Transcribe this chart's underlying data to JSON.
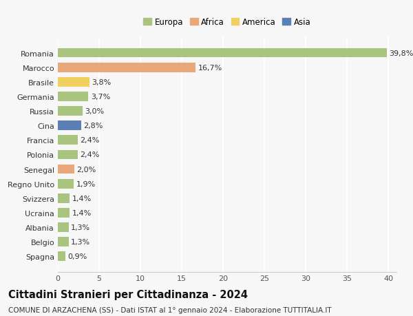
{
  "categories": [
    "Spagna",
    "Belgio",
    "Albania",
    "Ucraina",
    "Svizzera",
    "Regno Unito",
    "Senegal",
    "Polonia",
    "Francia",
    "Cina",
    "Russia",
    "Germania",
    "Brasile",
    "Marocco",
    "Romania"
  ],
  "values": [
    0.9,
    1.3,
    1.3,
    1.4,
    1.4,
    1.9,
    2.0,
    2.4,
    2.4,
    2.8,
    3.0,
    3.7,
    3.8,
    16.7,
    39.8
  ],
  "continents": [
    "Europa",
    "Europa",
    "Europa",
    "Europa",
    "Europa",
    "Europa",
    "Africa",
    "Europa",
    "Europa",
    "Asia",
    "Europa",
    "Europa",
    "America",
    "Africa",
    "Europa"
  ],
  "colors": {
    "Europa": "#a8c47e",
    "Africa": "#e8a878",
    "America": "#f0d060",
    "Asia": "#5b7fb5"
  },
  "xlim": [
    0,
    41
  ],
  "xticks": [
    0,
    5,
    10,
    15,
    20,
    25,
    30,
    35,
    40
  ],
  "title": "Cittadini Stranieri per Cittadinanza - 2024",
  "subtitle": "COMUNE DI ARZACHENA (SS) - Dati ISTAT al 1° gennaio 2024 - Elaborazione TUTTITALIA.IT",
  "bg_color": "#f7f7f7",
  "grid_color": "#ffffff",
  "bar_height": 0.65,
  "label_fontsize": 8,
  "title_fontsize": 10.5,
  "subtitle_fontsize": 7.5
}
